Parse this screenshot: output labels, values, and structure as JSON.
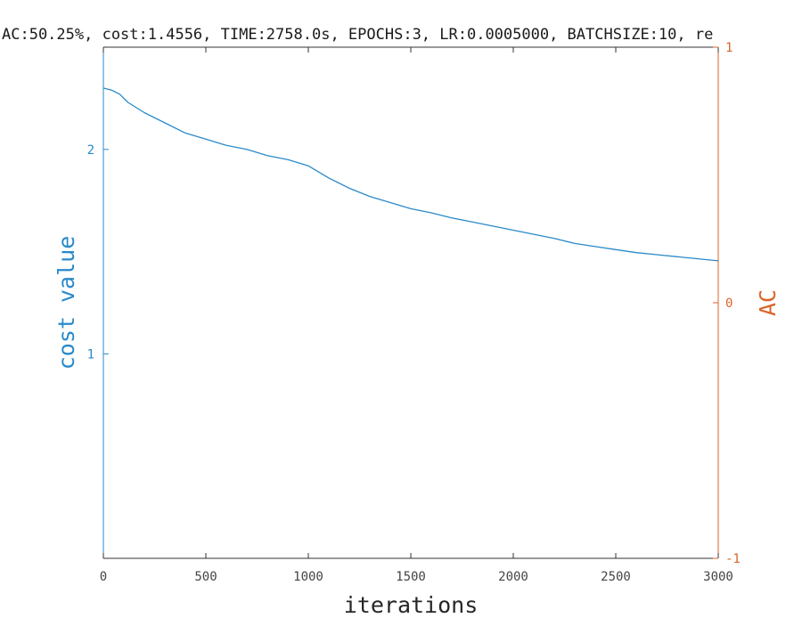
{
  "chart_data": {
    "type": "line",
    "title": "AC:50.25%, cost:1.4556, TIME:2758.0s, EPOCHS:3, LR:0.0005000, BATCHSIZE:10, re",
    "xlabel": "iterations",
    "ylabel": "cost value",
    "y2label": "AC",
    "xlim": [
      0,
      3000
    ],
    "ylim": [
      0.0,
      2.5
    ],
    "y2lim": [
      -1,
      1
    ],
    "xticks": [
      "0",
      "500",
      "1000",
      "1500",
      "2000",
      "2500",
      "3000"
    ],
    "yticks": [
      "1",
      "2"
    ],
    "y2ticks": [
      "-1",
      "0",
      "1"
    ],
    "grid": false,
    "colors": {
      "cost": "#2a8ac9",
      "ac": "#d9652a",
      "axis": "#333333"
    },
    "series": [
      {
        "axis": "left",
        "x": [
          0,
          40,
          80,
          120,
          200,
          300,
          400,
          500,
          600,
          700,
          800,
          900,
          1000,
          1100,
          1200,
          1300,
          1400,
          1500,
          1600,
          1700,
          1800,
          1900,
          2000,
          2100,
          2200,
          2300,
          2400,
          2500,
          2600,
          2700,
          2800,
          2900,
          3000
        ],
        "values": [
          2.3,
          2.29,
          2.27,
          2.23,
          2.18,
          2.13,
          2.08,
          2.05,
          2.02,
          2.0,
          1.97,
          1.95,
          1.92,
          1.86,
          1.81,
          1.77,
          1.74,
          1.71,
          1.69,
          1.665,
          1.645,
          1.625,
          1.605,
          1.585,
          1.565,
          1.54,
          1.525,
          1.51,
          1.495,
          1.485,
          1.475,
          1.465,
          1.455
        ]
      }
    ]
  }
}
